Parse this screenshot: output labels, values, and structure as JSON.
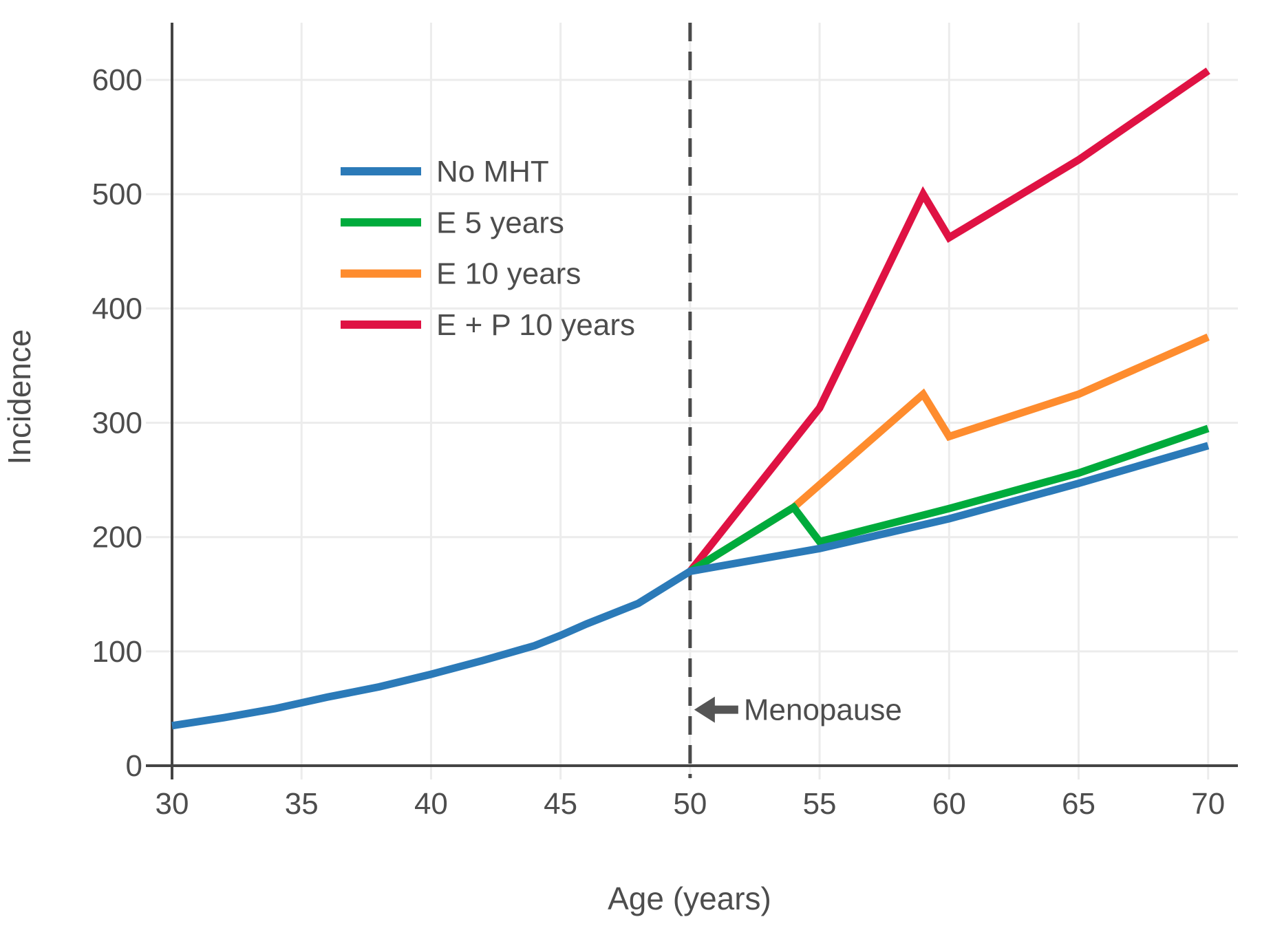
{
  "chart_data": {
    "type": "line",
    "title": "",
    "xlabel": "Age (years)",
    "ylabel": "Incidence",
    "xlim": [
      30,
      71.15
    ],
    "ylim": [
      0,
      650
    ],
    "xticks": [
      30,
      35,
      40,
      45,
      50,
      55,
      60,
      65,
      70
    ],
    "yticks": [
      0,
      100,
      200,
      300,
      400,
      500,
      600
    ],
    "grid": true,
    "legend_position": "upper-left-inside",
    "series": [
      {
        "name": "No MHT",
        "color": "#2b7ab8",
        "points": [
          [
            30,
            35
          ],
          [
            32,
            42
          ],
          [
            34,
            50
          ],
          [
            36,
            60
          ],
          [
            38,
            69
          ],
          [
            40,
            80
          ],
          [
            42,
            92
          ],
          [
            44,
            105
          ],
          [
            45,
            114
          ],
          [
            46,
            124
          ],
          [
            48,
            142
          ],
          [
            50,
            170
          ],
          [
            55,
            190
          ],
          [
            60,
            216
          ],
          [
            65,
            247
          ],
          [
            70,
            280
          ]
        ]
      },
      {
        "name": "E 5 years",
        "color": "#00ab3c",
        "points": [
          [
            50,
            170
          ],
          [
            54,
            226
          ],
          [
            55,
            196
          ],
          [
            60,
            225
          ],
          [
            65,
            256
          ],
          [
            70,
            295
          ]
        ]
      },
      {
        "name": "E 10 years",
        "color": "#fe8c2e",
        "points": [
          [
            50,
            170
          ],
          [
            54,
            226
          ],
          [
            59,
            325
          ],
          [
            60,
            288
          ],
          [
            65,
            325
          ],
          [
            70,
            375
          ]
        ]
      },
      {
        "name": "E + P 10 years",
        "color": "#df1243",
        "points": [
          [
            50,
            170
          ],
          [
            55,
            313
          ],
          [
            59,
            500
          ],
          [
            60,
            462
          ],
          [
            65,
            530
          ],
          [
            70,
            608
          ]
        ]
      }
    ],
    "annotations": [
      {
        "type": "vline",
        "x": 50,
        "style": "dashed",
        "color": "#4a4a4a"
      },
      {
        "type": "arrow-label",
        "text": "Menopause",
        "x": 50,
        "y": 49,
        "direction": "left",
        "color": "#555555"
      }
    ],
    "colors": {
      "axis": "#444444",
      "grid": "#ececec",
      "text": "#4d4d4d"
    }
  }
}
